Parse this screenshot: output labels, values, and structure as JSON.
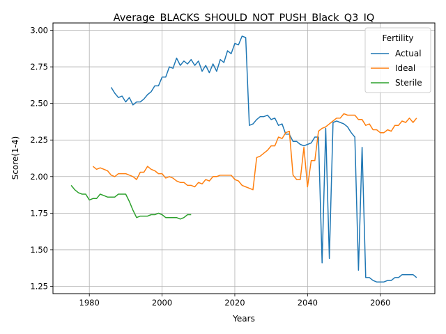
{
  "chart_data": {
    "type": "line",
    "title": "Average_BLACKS_SHOULD_NOT_PUSH_Black_Q3_IQ",
    "xlabel": "Years",
    "ylabel": "Score(1-4)",
    "xlim": [
      1970,
      2075
    ],
    "ylim": [
      1.2,
      3.05
    ],
    "xticks": [
      1980,
      2000,
      2020,
      2040,
      2060
    ],
    "yticks": [
      1.25,
      1.5,
      1.75,
      2.0,
      2.25,
      2.5,
      2.75,
      3.0
    ],
    "xtick_labels": [
      "1980",
      "2000",
      "2020",
      "2040",
      "2060"
    ],
    "ytick_labels": [
      "1.25",
      "1.50",
      "1.75",
      "2.00",
      "2.25",
      "2.50",
      "2.75",
      "3.00"
    ],
    "grid": true,
    "legend": {
      "title": "Fertility",
      "placement": "top-right"
    },
    "series": [
      {
        "name": "Actual",
        "color": "#1f77b4",
        "x": [
          1986,
          1987,
          1988,
          1989,
          1990,
          1991,
          1992,
          1993,
          1994,
          1995,
          1996,
          1997,
          1998,
          1999,
          2000,
          2001,
          2002,
          2003,
          2004,
          2005,
          2006,
          2007,
          2008,
          2009,
          2010,
          2011,
          2012,
          2013,
          2014,
          2015,
          2016,
          2017,
          2018,
          2019,
          2020,
          2021,
          2022,
          2023,
          2024,
          2025,
          2026,
          2027,
          2028,
          2029,
          2030,
          2031,
          2032,
          2033,
          2034,
          2035,
          2036,
          2037,
          2038,
          2039,
          2040,
          2041,
          2042,
          2043,
          2044,
          2045,
          2046,
          2047,
          2048,
          2049,
          2050,
          2051,
          2052,
          2053,
          2054,
          2055,
          2056,
          2057,
          2058,
          2059,
          2060,
          2061,
          2062,
          2063,
          2064,
          2065,
          2066,
          2067,
          2068,
          2069,
          2070
        ],
        "values": [
          2.61,
          2.57,
          2.54,
          2.55,
          2.51,
          2.54,
          2.49,
          2.51,
          2.51,
          2.53,
          2.56,
          2.58,
          2.62,
          2.62,
          2.68,
          2.68,
          2.75,
          2.74,
          2.81,
          2.76,
          2.79,
          2.77,
          2.8,
          2.76,
          2.79,
          2.72,
          2.76,
          2.71,
          2.77,
          2.72,
          2.8,
          2.78,
          2.86,
          2.84,
          2.91,
          2.9,
          2.96,
          2.95,
          2.35,
          2.36,
          2.39,
          2.41,
          2.41,
          2.42,
          2.39,
          2.4,
          2.35,
          2.36,
          2.29,
          2.29,
          2.24,
          2.24,
          2.22,
          2.21,
          2.22,
          2.23,
          2.27,
          2.27,
          1.41,
          2.33,
          1.44,
          2.37,
          2.38,
          2.37,
          2.36,
          2.34,
          2.3,
          2.27,
          1.36,
          2.2,
          1.31,
          1.31,
          1.29,
          1.28,
          1.28,
          1.28,
          1.29,
          1.29,
          1.31,
          1.31,
          1.33,
          1.33,
          1.33,
          1.33,
          1.31
        ]
      },
      {
        "name": "Ideal",
        "color": "#ff7f0e",
        "x": [
          1981,
          1982,
          1983,
          1984,
          1985,
          1986,
          1987,
          1988,
          1989,
          1990,
          1991,
          1992,
          1993,
          1994,
          1995,
          1996,
          1997,
          1998,
          1999,
          2000,
          2001,
          2002,
          2003,
          2004,
          2005,
          2006,
          2007,
          2008,
          2009,
          2010,
          2011,
          2012,
          2013,
          2014,
          2015,
          2016,
          2017,
          2018,
          2019,
          2020,
          2021,
          2022,
          2023,
          2024,
          2025,
          2026,
          2027,
          2028,
          2029,
          2030,
          2031,
          2032,
          2033,
          2034,
          2035,
          2036,
          2037,
          2038,
          2039,
          2040,
          2041,
          2042,
          2043,
          2044,
          2045,
          2046,
          2047,
          2048,
          2049,
          2050,
          2051,
          2052,
          2053,
          2054,
          2055,
          2056,
          2057,
          2058,
          2059,
          2060,
          2061,
          2062,
          2063,
          2064,
          2065,
          2066,
          2067,
          2068,
          2069,
          2070
        ],
        "values": [
          2.07,
          2.05,
          2.06,
          2.05,
          2.04,
          2.01,
          2.0,
          2.02,
          2.02,
          2.02,
          2.01,
          2.0,
          1.98,
          2.03,
          2.03,
          2.07,
          2.05,
          2.04,
          2.02,
          2.02,
          1.99,
          2.0,
          1.99,
          1.97,
          1.96,
          1.96,
          1.94,
          1.94,
          1.93,
          1.96,
          1.95,
          1.98,
          1.97,
          2.0,
          2.0,
          2.01,
          2.01,
          2.01,
          2.01,
          1.98,
          1.97,
          1.94,
          1.93,
          1.92,
          1.91,
          2.13,
          2.14,
          2.16,
          2.18,
          2.21,
          2.21,
          2.27,
          2.26,
          2.3,
          2.31,
          2.01,
          1.98,
          1.98,
          2.2,
          1.93,
          2.11,
          2.11,
          2.31,
          2.33,
          2.34,
          2.36,
          2.38,
          2.4,
          2.4,
          2.43,
          2.42,
          2.42,
          2.42,
          2.39,
          2.39,
          2.35,
          2.36,
          2.32,
          2.32,
          2.3,
          2.3,
          2.32,
          2.31,
          2.35,
          2.35,
          2.38,
          2.37,
          2.4,
          2.37,
          2.4
        ]
      },
      {
        "name": "Sterile",
        "color": "#2ca02c",
        "x": [
          1975,
          1976,
          1977,
          1978,
          1979,
          1980,
          1981,
          1982,
          1983,
          1984,
          1985,
          1986,
          1987,
          1988,
          1989,
          1990,
          1991,
          1992,
          1993,
          1994,
          1995,
          1996,
          1997,
          1998,
          1999,
          2000,
          2001,
          2002,
          2003,
          2004,
          2005,
          2006,
          2007,
          2008
        ],
        "values": [
          1.94,
          1.91,
          1.89,
          1.88,
          1.88,
          1.84,
          1.85,
          1.85,
          1.88,
          1.87,
          1.86,
          1.86,
          1.86,
          1.88,
          1.88,
          1.88,
          1.83,
          1.77,
          1.72,
          1.73,
          1.73,
          1.73,
          1.74,
          1.74,
          1.75,
          1.74,
          1.72,
          1.72,
          1.72,
          1.72,
          1.71,
          1.72,
          1.74,
          1.74
        ]
      }
    ]
  }
}
